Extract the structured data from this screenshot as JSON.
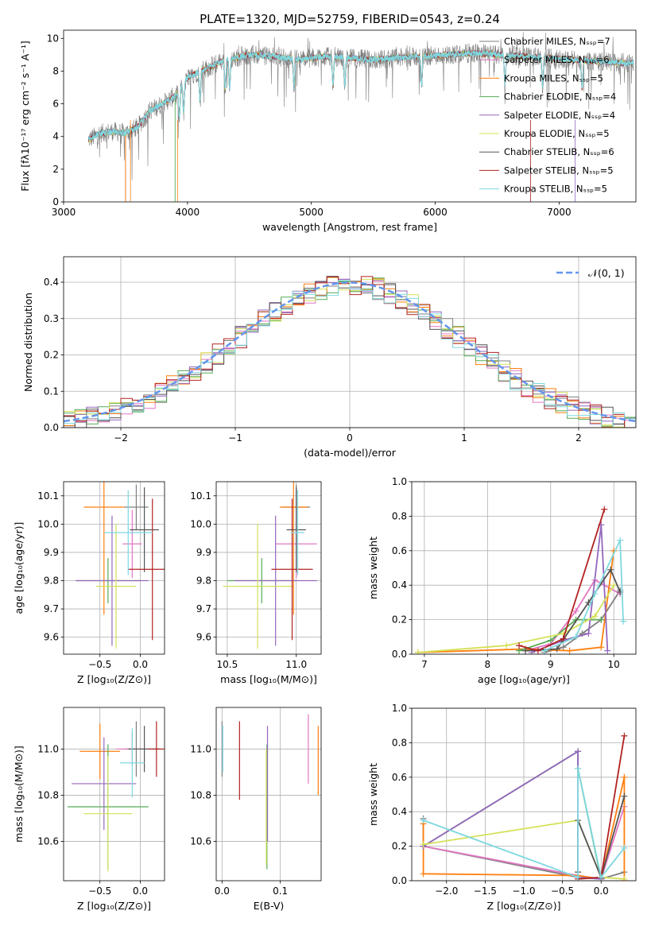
{
  "figure": {
    "title": "PLATE=1320, MJD=52759, FIBERID=0543, z=0.24"
  },
  "colors": [
    "#7f7f7f",
    "#e377c2",
    "#ff7f0e",
    "#55aa55",
    "#9467bd",
    "#d4e157",
    "#555555",
    "#b22222",
    "#7fd8e0"
  ],
  "chart_data": [
    {
      "id": "spectrum",
      "type": "line",
      "xlabel": "wavelength [Angstrom, rest frame]",
      "ylabel": "Flux [fλ10⁻¹⁷ erg cm⁻² s⁻¹ A⁻¹]",
      "xlim": [
        3000,
        7620
      ],
      "ylim": [
        0,
        10.5
      ],
      "xticks": [
        3000,
        4000,
        5000,
        6000,
        7000
      ],
      "yticks": [
        0,
        2,
        4,
        6,
        8,
        10
      ],
      "legend_position": "right",
      "series": [
        {
          "name": "Chabrier MILES, Nₛₛₚ=7"
        },
        {
          "name": "Salpeter MILES, Nₛₛₚ=6"
        },
        {
          "name": "Kroupa MILES, Nₛₛₚ=5"
        },
        {
          "name": "Chabrier ELODIE, Nₛₛₚ=4"
        },
        {
          "name": "Salpeter ELODIE, Nₛₛₚ=4"
        },
        {
          "name": "Kroupa ELODIE, Nₛₛₚ=5"
        },
        {
          "name": "Chabrier STELIB, Nₛₛₚ=6"
        },
        {
          "name": "Salpeter STELIB, Nₛₛₚ=5"
        },
        {
          "name": "Kroupa STELIB, Nₛₛₚ=5"
        }
      ],
      "continuum": {
        "x": [
          3200,
          3300,
          3400,
          3500,
          3600,
          3700,
          3800,
          3900,
          4000,
          4100,
          4200,
          4300,
          4400,
          4500,
          4700,
          4900,
          5100,
          5300,
          5500,
          5700,
          5900,
          6100,
          6300,
          6500,
          6700,
          6900,
          7100,
          7300,
          7500,
          7620
        ],
        "y": [
          3.8,
          4.2,
          4.3,
          4.2,
          4.6,
          5.6,
          6.0,
          6.5,
          7.6,
          8.0,
          8.3,
          8.7,
          8.8,
          9.0,
          8.9,
          8.7,
          8.9,
          8.8,
          8.7,
          8.8,
          8.9,
          9.0,
          9.1,
          9.0,
          8.9,
          8.8,
          8.7,
          8.6,
          8.5,
          8.5
        ]
      },
      "absorption_lines": [
        3934,
        3969,
        4101,
        4305,
        4340,
        4861,
        5175,
        5270,
        5890,
        6563,
        6867,
        7186
      ]
    },
    {
      "id": "residuals",
      "type": "line",
      "xlabel": "(data-model)/error",
      "ylabel": "Normed distribution",
      "xlim": [
        -2.5,
        2.5
      ],
      "ylim": [
        0,
        0.47
      ],
      "xticks": [
        -2,
        -1,
        0,
        1,
        2
      ],
      "yticks": [
        0.0,
        0.1,
        0.2,
        0.3,
        0.4
      ],
      "legend": "𝒩(0, 1)",
      "grid": true,
      "bin_width": 0.1
    },
    {
      "id": "age_vs_Z",
      "type": "scatter",
      "xlabel": "Z [log₁₀(Z/Z⊙)]",
      "ylabel": "age  [log₁₀(age/yr)]",
      "xlim": [
        -0.95,
        0.3
      ],
      "ylim": [
        9.54,
        10.15
      ],
      "xticks": [
        -0.5,
        0.0
      ],
      "yticks": [
        9.6,
        9.7,
        9.8,
        9.9,
        10.0,
        10.1
      ],
      "grid": true,
      "points": [
        {
          "x": -0.05,
          "y": 10.06,
          "xerr": 0.15,
          "yerr": 0.08
        },
        {
          "x": -0.1,
          "y": 9.93,
          "xerr": 0.12,
          "yerr": 0.12
        },
        {
          "x": -0.45,
          "y": 10.06,
          "xerr": 0.25,
          "yerr": 0.38
        },
        {
          "x": -0.4,
          "y": 9.8,
          "xerr": 0.4,
          "yerr": 0.08
        },
        {
          "x": -0.35,
          "y": 9.8,
          "xerr": 0.45,
          "yerr": 0.23
        },
        {
          "x": -0.3,
          "y": 9.78,
          "xerr": 0.25,
          "yerr": 0.22
        },
        {
          "x": 0.05,
          "y": 9.98,
          "xerr": 0.18,
          "yerr": 0.15
        },
        {
          "x": 0.15,
          "y": 9.84,
          "xerr": 0.3,
          "yerr": 0.25
        },
        {
          "x": -0.15,
          "y": 9.97,
          "xerr": 0.3,
          "yerr": 0.15
        }
      ]
    },
    {
      "id": "age_vs_mass",
      "type": "scatter",
      "xlabel": "mass [log₁₀(M/M⊙)]",
      "xlim": [
        10.42,
        11.18
      ],
      "ylim": [
        9.54,
        10.15
      ],
      "xticks": [
        10.5,
        11.0
      ],
      "yticks": [
        9.6,
        9.7,
        9.8,
        9.9,
        10.0,
        10.1
      ],
      "grid": true,
      "points": [
        {
          "x": 11.0,
          "y": 10.06,
          "xerr": 0.1,
          "yerr": 0.08
        },
        {
          "x": 11.0,
          "y": 9.93,
          "xerr": 0.15,
          "yerr": 0.12
        },
        {
          "x": 10.98,
          "y": 10.06,
          "xerr": 0.1,
          "yerr": 0.38
        },
        {
          "x": 10.75,
          "y": 9.8,
          "xerr": 0.25,
          "yerr": 0.08
        },
        {
          "x": 10.85,
          "y": 9.8,
          "xerr": 0.3,
          "yerr": 0.23
        },
        {
          "x": 10.72,
          "y": 9.78,
          "xerr": 0.25,
          "yerr": 0.22
        },
        {
          "x": 11.0,
          "y": 9.98,
          "xerr": 0.07,
          "yerr": 0.15
        },
        {
          "x": 10.97,
          "y": 9.84,
          "xerr": 0.15,
          "yerr": 0.25
        },
        {
          "x": 11.01,
          "y": 9.97,
          "xerr": 0.05,
          "yerr": 0.15
        }
      ]
    },
    {
      "id": "weight_vs_age",
      "type": "line",
      "xlabel": "age  [log₁₀(age/yr)]",
      "ylabel": "mass weight",
      "xlim": [
        6.8,
        10.35
      ],
      "ylim": [
        0,
        1.0
      ],
      "xticks": [
        7,
        8,
        9,
        10
      ],
      "yticks": [
        0.0,
        0.2,
        0.4,
        0.6,
        0.8,
        1.0
      ],
      "grid": true,
      "series": [
        {
          "x": [
            8.9,
            9.2,
            9.5,
            9.8,
            10.1
          ],
          "y": [
            0.01,
            0.04,
            0.12,
            0.2,
            0.37
          ]
        },
        {
          "x": [
            8.6,
            9.0,
            9.4,
            9.7,
            10.1
          ],
          "y": [
            0.02,
            0.06,
            0.25,
            0.43,
            0.35
          ]
        },
        {
          "x": [
            6.9,
            8.6,
            9.3,
            9.8,
            10.0
          ],
          "y": [
            0.01,
            0.03,
            0.02,
            0.04,
            0.6
          ]
        },
        {
          "x": [
            8.5,
            9.0,
            9.4,
            9.8
          ],
          "y": [
            0.02,
            0.08,
            0.2,
            0.2
          ]
        },
        {
          "x": [
            8.7,
            9.2,
            9.6,
            9.8,
            9.9
          ],
          "y": [
            0.01,
            0.08,
            0.12,
            0.75,
            0.02
          ]
        },
        {
          "x": [
            6.9,
            8.3,
            9.2,
            9.7,
            10.0
          ],
          "y": [
            0.01,
            0.05,
            0.12,
            0.22,
            0.4
          ]
        },
        {
          "x": [
            8.6,
            9.1,
            9.6,
            9.95,
            10.1
          ],
          "y": [
            0.02,
            0.03,
            0.3,
            0.49,
            0.36
          ]
        },
        {
          "x": [
            8.5,
            8.8,
            9.2,
            9.85
          ],
          "y": [
            0.05,
            0.02,
            0.09,
            0.84
          ]
        },
        {
          "x": [
            8.9,
            9.4,
            9.7,
            10.1,
            10.15
          ],
          "y": [
            0.02,
            0.1,
            0.35,
            0.66,
            0.19
          ]
        }
      ]
    },
    {
      "id": "mass_vs_Z",
      "type": "scatter",
      "xlabel": "Z [log₁₀(Z/Z⊙)]",
      "ylabel": "mass [log₁₀(M/M⊙)]",
      "xlim": [
        -0.95,
        0.3
      ],
      "ylim": [
        10.43,
        11.18
      ],
      "xticks": [
        -0.5,
        0.0
      ],
      "yticks": [
        10.6,
        10.8,
        11.0
      ],
      "grid": true,
      "points": [
        {
          "x": -0.05,
          "y": 11.0,
          "xerr": 0.15,
          "yerr": 0.12
        },
        {
          "x": -0.1,
          "y": 11.0,
          "xerr": 0.2,
          "yerr": 0.07
        },
        {
          "x": -0.5,
          "y": 10.99,
          "xerr": 0.25,
          "yerr": 0.12
        },
        {
          "x": -0.4,
          "y": 10.75,
          "xerr": 0.5,
          "yerr": 0.27
        },
        {
          "x": -0.45,
          "y": 10.85,
          "xerr": 0.4,
          "yerr": 0.2
        },
        {
          "x": -0.4,
          "y": 10.72,
          "xerr": 0.3,
          "yerr": 0.25
        },
        {
          "x": 0.05,
          "y": 11.0,
          "xerr": 0.2,
          "yerr": 0.1
        },
        {
          "x": 0.2,
          "y": 11.0,
          "xerr": 0.1,
          "yerr": 0.12
        },
        {
          "x": -0.1,
          "y": 10.94,
          "xerr": 0.15,
          "yerr": 0.15
        }
      ]
    },
    {
      "id": "mass_vs_ebv",
      "type": "scatter",
      "xlabel": "E(B-V)",
      "xlim": [
        -0.01,
        0.17
      ],
      "ylim": [
        10.43,
        11.18
      ],
      "xticks": [
        0.0,
        0.1
      ],
      "yticks": [
        10.6,
        10.8,
        11.0
      ],
      "grid": true,
      "points": [
        {
          "x": 0.0,
          "y": 11.0,
          "yerr": 0.12
        },
        {
          "x": 0.148,
          "y": 11.0,
          "yerr": 0.15
        },
        {
          "x": 0.165,
          "y": 10.95,
          "yerr": 0.15
        },
        {
          "x": 0.077,
          "y": 10.75,
          "yerr": 0.27
        },
        {
          "x": 0.078,
          "y": 10.85,
          "yerr": 0.25
        },
        {
          "x": 0.076,
          "y": 10.75,
          "yerr": 0.25
        },
        {
          "x": 0.001,
          "y": 11.0,
          "yerr": 0.1
        },
        {
          "x": 0.03,
          "y": 10.95,
          "yerr": 0.17
        },
        {
          "x": 0.001,
          "y": 11.0,
          "yerr": 0.1
        }
      ]
    },
    {
      "id": "weight_vs_Z",
      "type": "line",
      "xlabel": "Z [log₁₀(Z/Z⊙)]",
      "ylabel": "mass weight",
      "xlim": [
        -2.45,
        0.45
      ],
      "ylim": [
        0,
        1.0
      ],
      "xticks": [
        -2.0,
        -1.5,
        -1.0,
        -0.5,
        0.0
      ],
      "yticks": [
        0.0,
        0.2,
        0.4,
        0.6,
        0.8,
        1.0
      ],
      "grid": true,
      "series": [
        {
          "x": [
            -2.3,
            -2.3,
            -0.3,
            0.0,
            0.3
          ],
          "y": [
            0.36,
            0.2,
            0.02,
            0.01,
            0.05
          ]
        },
        {
          "x": [
            -2.3,
            -0.3,
            0.0,
            0.3
          ],
          "y": [
            0.2,
            0.03,
            0.01,
            0.43
          ]
        },
        {
          "x": [
            -2.3,
            -2.3,
            -0.3,
            0.0,
            0.3,
            0.3
          ],
          "y": [
            0.33,
            0.04,
            0.03,
            0.01,
            0.6,
            0.0
          ]
        },
        {
          "x": [
            -2.3,
            -0.3,
            -0.3,
            0.0
          ],
          "y": [
            0.2,
            0.75,
            0.65,
            0.01
          ]
        },
        {
          "x": [
            -2.3,
            -0.3,
            -0.3,
            0.0
          ],
          "y": [
            0.2,
            0.75,
            0.02,
            0.01
          ]
        },
        {
          "x": [
            -2.3,
            -0.3,
            0.0,
            0.3
          ],
          "y": [
            0.21,
            0.35,
            0.02,
            0.01
          ]
        },
        {
          "x": [
            -0.3,
            -0.3,
            0.0,
            0.3
          ],
          "y": [
            0.05,
            0.35,
            0.02,
            0.49
          ]
        },
        {
          "x": [
            -0.3,
            0.0,
            0.3
          ],
          "y": [
            0.01,
            0.02,
            0.84
          ]
        },
        {
          "x": [
            -2.3,
            -0.3,
            -0.3,
            0.0,
            0.3
          ],
          "y": [
            0.35,
            0.02,
            0.65,
            0.02,
            0.19
          ]
        }
      ]
    }
  ]
}
